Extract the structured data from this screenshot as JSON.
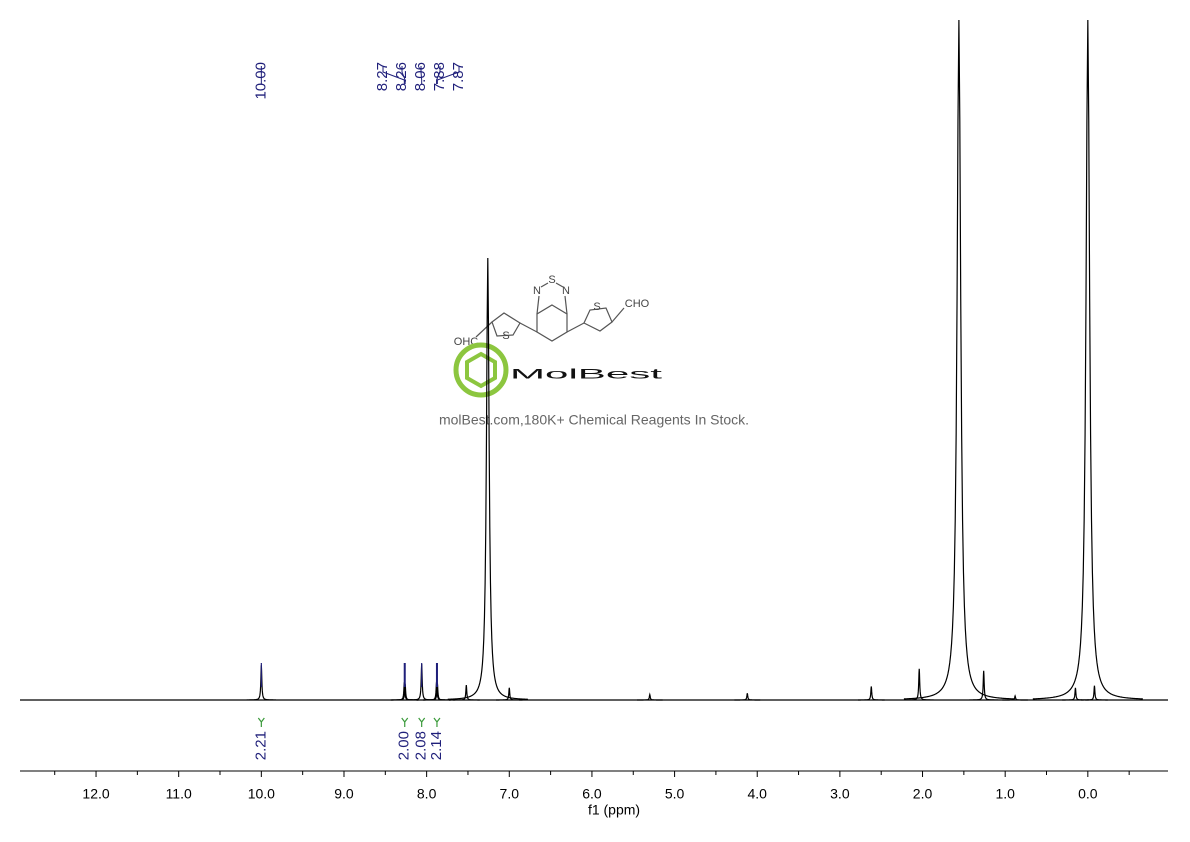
{
  "chart_data": {
    "type": "spectrum",
    "x_label": "f1 (ppm)",
    "xlim": [
      12.92,
      -0.97
    ],
    "xticks": [
      {
        "value": 12,
        "label": "12.0"
      },
      {
        "value": 11,
        "label": "11.0"
      },
      {
        "value": 10,
        "label": "10.0"
      },
      {
        "value": 9,
        "label": "9.0"
      },
      {
        "value": 8,
        "label": "8.0"
      },
      {
        "value": 7,
        "label": "7.0"
      },
      {
        "value": 6,
        "label": "6.0"
      },
      {
        "value": 5,
        "label": "5.0"
      },
      {
        "value": 4,
        "label": "4.0"
      },
      {
        "value": 3,
        "label": "3.0"
      },
      {
        "value": 2,
        "label": "2.0"
      },
      {
        "value": 1,
        "label": "1.0"
      },
      {
        "value": 0,
        "label": "0.0"
      }
    ],
    "xminorticks": [
      12.5,
      11.5,
      10.5,
      9.5,
      8.5,
      7.5,
      6.5,
      5.5,
      4.5,
      3.5,
      2.5,
      1.5,
      0.5,
      -0.5
    ],
    "ylim": [
      0,
      100
    ],
    "color": "#000000",
    "peaks": {
      "x": [
        10.0,
        8.27,
        8.26,
        8.06,
        7.88,
        7.87,
        7.52,
        7.26,
        7.0,
        5.3,
        4.12,
        2.62,
        2.04,
        1.56,
        1.26,
        0.88,
        0.15,
        0.0,
        -0.08
      ],
      "values": [
        5.1,
        2.6,
        2.4,
        5.3,
        2.7,
        2.5,
        2.2,
        65,
        1.8,
        0.8,
        1.0,
        2.0,
        4.6,
        100,
        4.3,
        0.6,
        1.8,
        100,
        2.1
      ]
    },
    "peak_labels": [
      {
        "value": 10,
        "label": "10.00"
      },
      8.27,
      8.26,
      8.06,
      7.88,
      7.87
    ],
    "peak_label_color": "#1f1f7a",
    "integrals": {
      "x": [
        10.0,
        8.265,
        8.06,
        7.875
      ],
      "values": [
        2.21,
        2,
        2.08,
        2.14
      ],
      "value_labels": [
        "2.21",
        "2.00",
        "2.08",
        "2.14"
      ],
      "color": "#3a9a3a"
    }
  },
  "watermark": {
    "brand": "MolBest",
    "tagline": "molBest.com,180K+ Chemical Reagents In Stock.",
    "atoms": [
      "N",
      "S",
      "N",
      "S",
      "S",
      "OHC",
      "CHO"
    ]
  }
}
